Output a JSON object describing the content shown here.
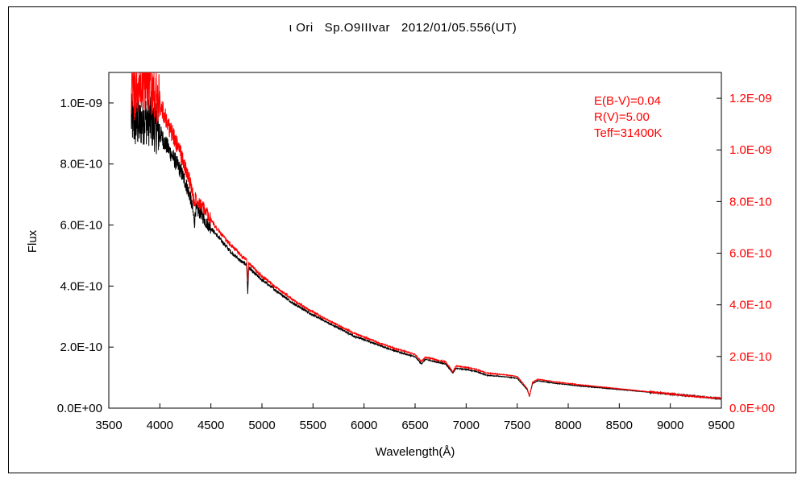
{
  "chart_data": {
    "type": "line",
    "title": "ι Ori   Sp.O9IIIvar   2012/01/05.556(UT)",
    "xlabel": "Wavelength(Å)",
    "ylabel": "Flux",
    "xlim": [
      3500,
      9500
    ],
    "ylim_left": [
      0,
      1.1e-09
    ],
    "ylim_right": [
      0,
      1.3e-09
    ],
    "x_ticks": [
      "3500",
      "4000",
      "4500",
      "5000",
      "5500",
      "6000",
      "6500",
      "7000",
      "7500",
      "8000",
      "8500",
      "9000",
      "9500"
    ],
    "y_ticks_left": [
      "0.0E+00",
      "2.0E-10",
      "4.0E-10",
      "6.0E-10",
      "8.0E-10",
      "1.0E-09"
    ],
    "y_ticks_right": [
      "0.0E+00",
      "2.0E-10",
      "4.0E-10",
      "6.0E-10",
      "8.0E-10",
      "1.0E-09",
      "1.2E-09"
    ],
    "grid": false,
    "annotations": [
      "E(B-V)=0.04",
      "R(V)=5.00",
      "Teff=31400K"
    ],
    "series": [
      {
        "axis": "left",
        "color": "#000000",
        "x": [
          3720,
          3750,
          3800,
          3850,
          3900,
          3950,
          4000,
          4050,
          4100,
          4150,
          4200,
          4250,
          4300,
          4340,
          4350,
          4400,
          4450,
          4500,
          4550,
          4600,
          4650,
          4700,
          4750,
          4800,
          4850,
          4861,
          4870,
          4900,
          4950,
          5000,
          5100,
          5200,
          5300,
          5400,
          5500,
          5600,
          5700,
          5800,
          5900,
          6000,
          6100,
          6200,
          6300,
          6400,
          6500,
          6563,
          6600,
          6700,
          6800,
          6870,
          6900,
          7000,
          7100,
          7200,
          7300,
          7400,
          7500,
          7600,
          7620,
          7650,
          7700,
          7800,
          7900,
          8000,
          8100,
          8200,
          8300,
          8400,
          8500,
          8600,
          8700,
          8800,
          8900,
          9000,
          9100,
          9200,
          9300,
          9400,
          9500
        ],
        "y": [
          9.5e-10,
          9.3e-10,
          9.3e-10,
          9.5e-10,
          9.4e-10,
          9.2e-10,
          9e-10,
          8.7e-10,
          8.4e-10,
          8.1e-10,
          7.8e-10,
          7.4e-10,
          6.9e-10,
          6.1e-10,
          6.5e-10,
          6.4e-10,
          6.1e-10,
          5.9e-10,
          5.7e-10,
          5.5e-10,
          5.3e-10,
          5.1e-10,
          4.95e-10,
          4.8e-10,
          4.7e-10,
          3.75e-10,
          4.6e-10,
          4.5e-10,
          4.35e-10,
          4.2e-10,
          3.95e-10,
          3.7e-10,
          3.45e-10,
          3.25e-10,
          3.05e-10,
          2.88e-10,
          2.7e-10,
          2.55e-10,
          2.35e-10,
          2.25e-10,
          2.12e-10,
          2e-10,
          1.88e-10,
          1.78e-10,
          1.68e-10,
          1.45e-10,
          1.6e-10,
          1.52e-10,
          1.45e-10,
          1.15e-10,
          1.3e-10,
          1.27e-10,
          1.2e-10,
          1.08e-10,
          1.05e-10,
          1.02e-10,
          9.8e-11,
          6e-11,
          3.8e-11,
          8e-11,
          9e-11,
          8.5e-11,
          8e-11,
          7.7e-11,
          7.3e-11,
          7e-11,
          6.7e-11,
          6.4e-11,
          6.1e-11,
          5.8e-11,
          5.5e-11,
          5.2e-11,
          4.9e-11,
          4.6e-11,
          4.3e-11,
          4e-11,
          3.7e-11,
          3.4e-11,
          3.1e-11
        ]
      },
      {
        "axis": "right",
        "color": "#ff0000",
        "x": [
          3720,
          3750,
          3800,
          3850,
          3900,
          3950,
          4000,
          4050,
          4100,
          4150,
          4200,
          4250,
          4300,
          4340,
          4350,
          4400,
          4450,
          4500,
          4550,
          4600,
          4650,
          4700,
          4750,
          4800,
          4850,
          4861,
          4870,
          4900,
          4950,
          5000,
          5100,
          5200,
          5300,
          5400,
          5500,
          5600,
          5700,
          5800,
          5900,
          6000,
          6100,
          6200,
          6300,
          6400,
          6500,
          6563,
          6600,
          6700,
          6800,
          6870,
          6900,
          7000,
          7100,
          7200,
          7300,
          7400,
          7500,
          7600,
          7620,
          7650,
          7700,
          7800,
          7900,
          8000,
          8100,
          8200,
          8300,
          8400,
          8500,
          8600,
          8700,
          8800,
          8900,
          9000,
          9100,
          9200,
          9300,
          9400,
          9500
        ],
        "y": [
          1.25e-09,
          1.22e-09,
          1.23e-09,
          1.26e-09,
          1.25e-09,
          1.22e-09,
          1.18e-09,
          1.13e-09,
          1.08e-09,
          1.04e-09,
          9.9e-10,
          9.3e-10,
          8.7e-10,
          7.9e-10,
          8.2e-10,
          7.9e-10,
          7.6e-10,
          7.3e-10,
          7e-10,
          6.75e-10,
          6.5e-10,
          6.3e-10,
          6.1e-10,
          5.9e-10,
          5.75e-10,
          4.9e-10,
          5.6e-10,
          5.5e-10,
          5.3e-10,
          5.1e-10,
          4.8e-10,
          4.5e-10,
          4.2e-10,
          3.95e-10,
          3.72e-10,
          3.5e-10,
          3.3e-10,
          3.1e-10,
          2.9e-10,
          2.75e-10,
          2.6e-10,
          2.45e-10,
          2.32e-10,
          2.2e-10,
          2.08e-10,
          1.8e-10,
          1.98e-10,
          1.88e-10,
          1.79e-10,
          1.4e-10,
          1.63e-10,
          1.58e-10,
          1.5e-10,
          1.36e-10,
          1.32e-10,
          1.28e-10,
          1.23e-10,
          7.5e-11,
          4.5e-11,
          1e-10,
          1.12e-10,
          1.06e-10,
          1e-10,
          9.6e-11,
          9.1e-11,
          8.7e-11,
          8.3e-11,
          7.9e-11,
          7.5e-11,
          7.1e-11,
          6.7e-11,
          6.3e-11,
          5.9e-11,
          5.5e-11,
          5.1e-11,
          4.7e-11,
          4.4e-11,
          4.1e-11,
          3.8e-11
        ]
      }
    ]
  }
}
